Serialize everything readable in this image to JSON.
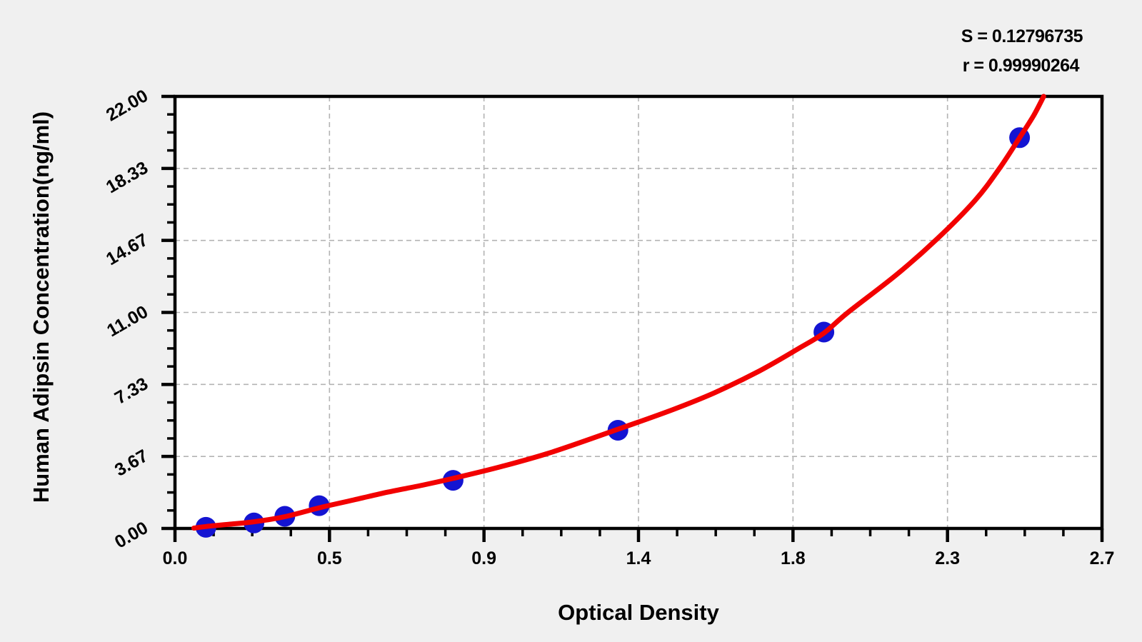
{
  "chart_data": {
    "type": "scatter",
    "title": "",
    "xlabel": "Optical Density",
    "ylabel": "Human Adipsin Concentration(ng/ml)",
    "xlim": [
      0,
      2.7
    ],
    "ylim": [
      0,
      22
    ],
    "x_tick_values": [
      0,
      0.45,
      0.9,
      1.35,
      1.8,
      2.25,
      2.7
    ],
    "x_tick_labels": [
      "0.0",
      "0.5",
      "0.9",
      "1.4",
      "1.8",
      "2.3",
      "2.7"
    ],
    "y_tick_values": [
      0,
      3.667,
      7.333,
      11,
      14.667,
      18.333,
      22
    ],
    "y_tick_labels": [
      "0.00",
      "3.67",
      "7.33",
      "11.00",
      "14.67",
      "18.33",
      "22.00"
    ],
    "minor_divisions_per_interval": 4,
    "grid": "dashed",
    "legend": "none",
    "annotation": {
      "s_label": "S = 0.12796735",
      "r_label": "r = 0.99990264",
      "s_value": 0.12796735,
      "r_value": 0.99990264
    },
    "series": [
      {
        "name": "standard-points",
        "type": "scatter",
        "points_od_conc": [
          [
            0.09,
            0.06
          ],
          [
            0.23,
            0.28
          ],
          [
            0.32,
            0.62
          ],
          [
            0.42,
            1.16
          ],
          [
            0.81,
            2.45
          ],
          [
            1.29,
            5.0
          ],
          [
            1.89,
            10.0
          ],
          [
            2.46,
            19.9
          ]
        ]
      },
      {
        "name": "fitted-curve",
        "type": "line",
        "points_od_conc": [
          [
            0.055,
            0.02
          ],
          [
            0.09,
            0.1
          ],
          [
            0.16,
            0.22
          ],
          [
            0.23,
            0.34
          ],
          [
            0.32,
            0.6
          ],
          [
            0.42,
            1.05
          ],
          [
            0.52,
            1.45
          ],
          [
            0.62,
            1.85
          ],
          [
            0.72,
            2.2
          ],
          [
            0.81,
            2.55
          ],
          [
            0.95,
            3.15
          ],
          [
            1.1,
            3.9
          ],
          [
            1.29,
            5.05
          ],
          [
            1.45,
            6.05
          ],
          [
            1.57,
            6.9
          ],
          [
            1.7,
            8.0
          ],
          [
            1.82,
            9.2
          ],
          [
            1.89,
            9.95
          ],
          [
            1.96,
            11.0
          ],
          [
            2.1,
            12.9
          ],
          [
            2.22,
            14.75
          ],
          [
            2.33,
            16.7
          ],
          [
            2.4,
            18.3
          ],
          [
            2.46,
            19.9
          ],
          [
            2.5,
            21.0
          ],
          [
            2.53,
            22.0
          ]
        ]
      }
    ],
    "colors": {
      "curve": "#f20000",
      "point": "#1414d2",
      "grid": "#b3b3b3",
      "axis": "#000000",
      "plot_background": "#ffffff",
      "page_background": "#f0f0f0"
    }
  }
}
